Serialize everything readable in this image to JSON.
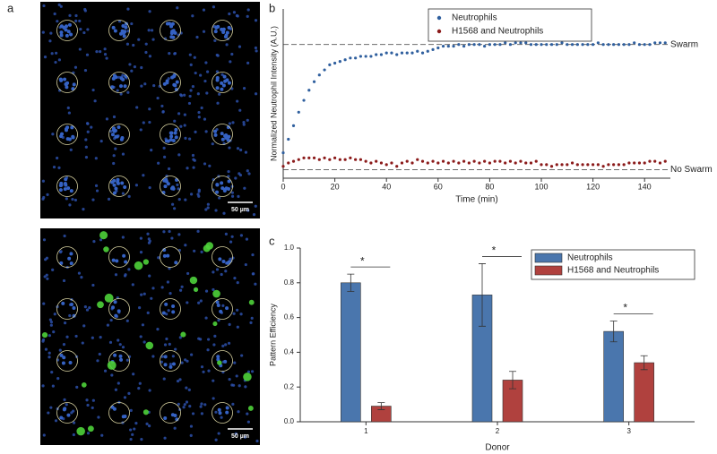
{
  "panel_a": {
    "label": "a",
    "images": [
      {
        "scale_bar": "50 µm"
      },
      {
        "scale_bar": "50 µm"
      }
    ]
  },
  "chart_data": [
    {
      "label": "b",
      "type": "scatter",
      "xlabel": "Time (min)",
      "ylabel": "Normalized Neutrophil Intensity (A.U.)",
      "x": [
        0,
        2,
        4,
        6,
        8,
        10,
        12,
        14,
        16,
        18,
        20,
        22,
        24,
        26,
        28,
        30,
        32,
        34,
        36,
        38,
        40,
        42,
        44,
        46,
        48,
        50,
        52,
        54,
        56,
        58,
        60,
        62,
        64,
        66,
        68,
        70,
        72,
        74,
        76,
        78,
        80,
        82,
        84,
        86,
        88,
        90,
        92,
        94,
        96,
        98,
        100,
        102,
        104,
        106,
        108,
        110,
        112,
        114,
        116,
        118,
        120,
        122,
        124,
        126,
        128,
        130,
        132,
        134,
        136,
        138,
        140,
        142,
        144,
        146,
        148
      ],
      "series": [
        {
          "name": "Neutrophils",
          "color": "#2f5f9e",
          "values": [
            0.15,
            0.23,
            0.31,
            0.39,
            0.46,
            0.52,
            0.57,
            0.61,
            0.64,
            0.67,
            0.68,
            0.69,
            0.7,
            0.71,
            0.71,
            0.72,
            0.72,
            0.72,
            0.73,
            0.73,
            0.74,
            0.74,
            0.73,
            0.74,
            0.74,
            0.74,
            0.75,
            0.74,
            0.75,
            0.76,
            0.77,
            0.78,
            0.78,
            0.78,
            0.79,
            0.78,
            0.79,
            0.79,
            0.79,
            0.78,
            0.79,
            0.79,
            0.79,
            0.8,
            0.79,
            0.8,
            0.8,
            0.8,
            0.79,
            0.79,
            0.79,
            0.79,
            0.79,
            0.79,
            0.8,
            0.79,
            0.79,
            0.79,
            0.79,
            0.79,
            0.79,
            0.8,
            0.79,
            0.79,
            0.79,
            0.79,
            0.79,
            0.79,
            0.8,
            0.79,
            0.79,
            0.79,
            0.8,
            0.8,
            0.8
          ]
        },
        {
          "name": "H1568 and Neutrophils",
          "color": "#8b1a1a",
          "values": [
            0.07,
            0.09,
            0.1,
            0.11,
            0.12,
            0.12,
            0.12,
            0.11,
            0.12,
            0.11,
            0.12,
            0.11,
            0.11,
            0.12,
            0.11,
            0.11,
            0.1,
            0.09,
            0.1,
            0.09,
            0.08,
            0.09,
            0.07,
            0.09,
            0.1,
            0.09,
            0.11,
            0.1,
            0.09,
            0.1,
            0.09,
            0.1,
            0.09,
            0.1,
            0.09,
            0.1,
            0.09,
            0.1,
            0.09,
            0.1,
            0.09,
            0.1,
            0.1,
            0.09,
            0.1,
            0.09,
            0.1,
            0.09,
            0.09,
            0.1,
            0.08,
            0.08,
            0.07,
            0.08,
            0.08,
            0.08,
            0.09,
            0.08,
            0.08,
            0.08,
            0.08,
            0.08,
            0.07,
            0.08,
            0.08,
            0.08,
            0.08,
            0.09,
            0.09,
            0.09,
            0.09,
            0.1,
            0.1,
            0.09,
            0.1
          ]
        }
      ],
      "reference_lines": [
        {
          "label": "Swarm",
          "value": 0.79
        },
        {
          "label": "No Swarm",
          "value": 0.05
        }
      ],
      "xlim": [
        0,
        150
      ],
      "xticks": [
        0,
        20,
        40,
        60,
        80,
        100,
        120,
        140
      ],
      "ylim": [
        0,
        1
      ],
      "legend": "top-right"
    },
    {
      "label": "c",
      "type": "bar",
      "xlabel": "Donor",
      "ylabel": "Pattern Efficiency",
      "categories": [
        "1",
        "2",
        "3"
      ],
      "series": [
        {
          "name": "Neutrophils",
          "color": "#4a76ad",
          "values": [
            0.8,
            0.73,
            0.52
          ],
          "errors": [
            0.05,
            0.18,
            0.06
          ]
        },
        {
          "name": "H1568 and Neutrophils",
          "color": "#b0413e",
          "values": [
            0.09,
            0.24,
            0.34
          ],
          "errors": [
            0.02,
            0.05,
            0.04
          ]
        }
      ],
      "significance": [
        "*",
        "*",
        "*"
      ],
      "ylim": [
        0,
        1
      ],
      "yticks": [
        {
          "value": 0,
          "label": "0.0"
        },
        {
          "value": 0.2,
          "label": "0.2"
        },
        {
          "value": 0.4,
          "label": "0.4"
        },
        {
          "value": 0.6,
          "label": "0.6"
        },
        {
          "value": 0.8,
          "label": "0.8"
        },
        {
          "value": 1,
          "label": "1.0"
        }
      ],
      "legend": "top-right"
    }
  ]
}
